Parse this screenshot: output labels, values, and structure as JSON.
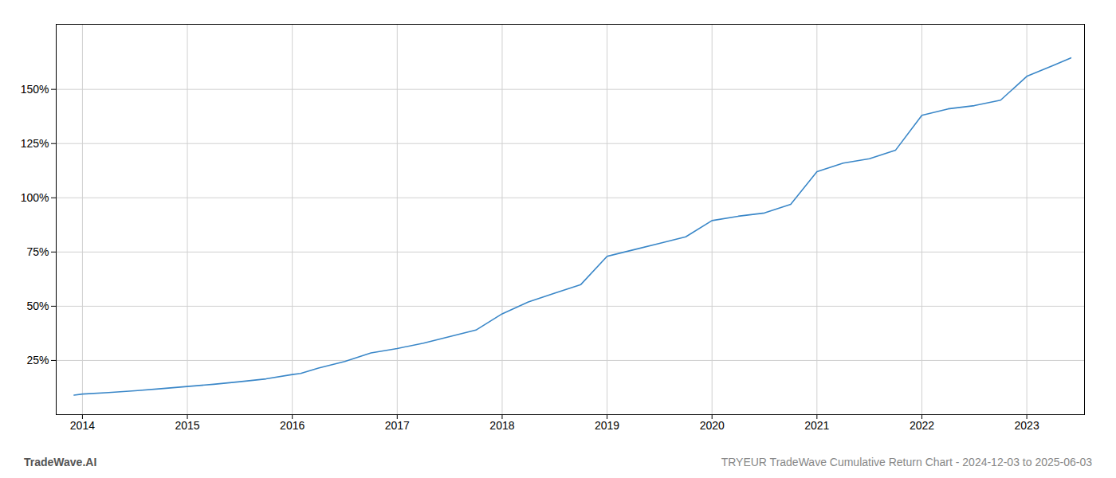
{
  "chart_data": {
    "type": "line",
    "title": "TRYEUR TradeWave Cumulative Return Chart - 2024-12-03 to 2025-06-03",
    "annotations": [
      "TradeWave.AI"
    ],
    "x": [
      2013.92,
      2014.0,
      2014.25,
      2014.5,
      2014.75,
      2015.0,
      2015.25,
      2015.5,
      2015.75,
      2016.0,
      2016.08,
      2016.25,
      2016.5,
      2016.75,
      2017.0,
      2017.25,
      2017.5,
      2017.75,
      2018.0,
      2018.25,
      2018.5,
      2018.75,
      2019.0,
      2019.25,
      2019.5,
      2019.75,
      2020.0,
      2020.25,
      2020.5,
      2020.75,
      2021.0,
      2021.25,
      2021.5,
      2021.75,
      2022.0,
      2022.25,
      2022.5,
      2022.75,
      2023.0,
      2023.25,
      2023.42
    ],
    "values": [
      9.0,
      9.5,
      10.2,
      11.0,
      12.0,
      13.0,
      14.0,
      15.2,
      16.5,
      18.5,
      19.0,
      21.5,
      24.5,
      28.5,
      30.5,
      33.0,
      36.0,
      39.0,
      46.5,
      52.0,
      56.0,
      60.0,
      73.0,
      76.0,
      79.0,
      82.0,
      89.5,
      91.5,
      93.0,
      97.0,
      112.0,
      116.0,
      118.0,
      122.0,
      138.0,
      141.0,
      142.5,
      145.0,
      156.0,
      161.0,
      164.5
    ],
    "color": "#3a87c8",
    "xlim": [
      2013.75,
      2023.55
    ],
    "ylim": [
      0,
      180
    ],
    "xticks": [
      2014,
      2015,
      2016,
      2017,
      2018,
      2019,
      2020,
      2021,
      2022,
      2023
    ],
    "yticks": [
      {
        "value": 25,
        "label": "25%"
      },
      {
        "value": 50,
        "label": "50%"
      },
      {
        "value": 75,
        "label": "75%"
      },
      {
        "value": 100,
        "label": "100%"
      },
      {
        "value": 125,
        "label": "125%"
      },
      {
        "value": 150,
        "label": "150%"
      }
    ],
    "grid": true
  }
}
